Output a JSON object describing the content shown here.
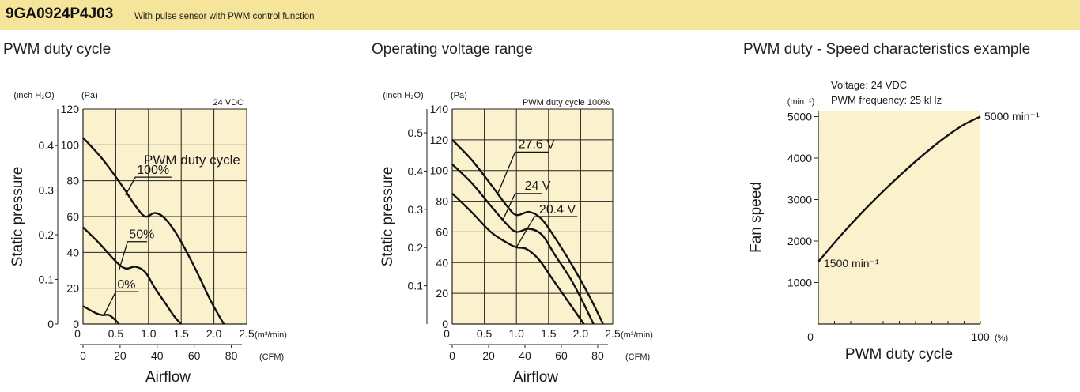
{
  "header": {
    "model": "9GA0924P4J03",
    "subtitle": "With pulse sensor with PWM control function"
  },
  "colors": {
    "header_band": "#f4e59a",
    "plot_bg": "#fbf1cd",
    "curve": "#111111"
  },
  "chart_data": [
    {
      "type": "line",
      "title": "PWM duty cycle",
      "condition_note": "24 VDC",
      "xlabel": "Airflow",
      "ylabel": "Static pressure",
      "x_unit_primary": "(m³/min)",
      "x_unit_secondary": "(CFM)",
      "y_unit_primary": "(Pa)",
      "y_unit_secondary": "(inch H₂O)",
      "xlim": [
        0,
        2.5
      ],
      "ylim": [
        0,
        120
      ],
      "x_ticks": [
        "0",
        "0.5",
        "1.0",
        "1.5",
        "2.0",
        "2.5"
      ],
      "cfm_ticks": [
        "0",
        "20",
        "40",
        "60",
        "80"
      ],
      "y_ticks": [
        "0",
        "20",
        "40",
        "60",
        "80",
        "100",
        "120"
      ],
      "inch_ticks": [
        "0",
        "0.1",
        "0.2",
        "0.3",
        "0.4"
      ],
      "legend_title": "PWM duty cycle",
      "grid": true,
      "series": [
        {
          "name": "100%",
          "x": [
            0,
            0.3,
            0.6,
            0.8,
            0.95,
            1.1,
            1.25,
            1.45,
            1.7,
            1.95,
            2.15
          ],
          "y": [
            104,
            92,
            77,
            66,
            60,
            62,
            59,
            49,
            32,
            13,
            0
          ]
        },
        {
          "name": "50%",
          "x": [
            0,
            0.25,
            0.5,
            0.65,
            0.8,
            0.95,
            1.1,
            1.25,
            1.4,
            1.5
          ],
          "y": [
            54,
            45,
            35,
            31,
            32,
            29,
            20,
            12,
            4,
            0
          ]
        },
        {
          "name": "0%",
          "x": [
            0,
            0.2,
            0.3,
            0.4,
            0.5,
            0.55
          ],
          "y": [
            10,
            6,
            5,
            5,
            2,
            0
          ]
        }
      ]
    },
    {
      "type": "line",
      "title": "Operating voltage range",
      "condition_note": "PWM duty cycle 100%",
      "xlabel": "Airflow",
      "ylabel": "Static pressure",
      "x_unit_primary": "(m³/min)",
      "x_unit_secondary": "(CFM)",
      "y_unit_primary": "(Pa)",
      "y_unit_secondary": "(inch H₂O)",
      "xlim": [
        0,
        2.5
      ],
      "ylim": [
        0,
        140
      ],
      "x_ticks": [
        "0",
        "0.5",
        "1.0",
        "1.5",
        "2.0",
        "2.5"
      ],
      "cfm_ticks": [
        "0",
        "20",
        "40",
        "60",
        "80"
      ],
      "y_ticks": [
        "0",
        "20",
        "40",
        "60",
        "80",
        "100",
        "120",
        "140"
      ],
      "inch_ticks": [
        "0.1",
        "0.2",
        "0.3",
        "0.4",
        "0.5"
      ],
      "grid": true,
      "series": [
        {
          "name": "27.6 V",
          "x": [
            0,
            0.3,
            0.6,
            0.85,
            1.0,
            1.2,
            1.4,
            1.65,
            1.9,
            2.15,
            2.35
          ],
          "y": [
            120,
            107,
            91,
            77,
            71,
            73,
            68,
            53,
            36,
            17,
            0
          ]
        },
        {
          "name": "24 V",
          "x": [
            0,
            0.3,
            0.6,
            0.85,
            1.0,
            1.2,
            1.4,
            1.6,
            1.85,
            2.05,
            2.2
          ],
          "y": [
            104,
            92,
            77,
            65,
            60,
            62,
            58,
            45,
            29,
            13,
            0
          ]
        },
        {
          "name": "20.4 V",
          "x": [
            0,
            0.3,
            0.6,
            0.85,
            1.0,
            1.15,
            1.35,
            1.55,
            1.75,
            1.9,
            2.05
          ],
          "y": [
            85,
            73,
            60,
            53,
            50,
            49,
            42,
            30,
            18,
            9,
            0
          ]
        }
      ]
    },
    {
      "type": "line",
      "title": "PWM duty - Speed characteristics example",
      "condition_lines": [
        "Voltage: 24 VDC",
        "PWM frequency: 25 kHz"
      ],
      "xlabel": "PWM duty cycle",
      "ylabel": "Fan speed",
      "x_unit": "(%)",
      "y_unit": "(min⁻¹)",
      "xlim": [
        0,
        100
      ],
      "ylim": [
        0,
        5000
      ],
      "x_ticks": [
        "0",
        "100"
      ],
      "y_ticks": [
        "1000",
        "2000",
        "3000",
        "4000",
        "5000"
      ],
      "grid": false,
      "series": [
        {
          "name": "",
          "x": [
            0,
            10,
            20,
            30,
            40,
            50,
            60,
            70,
            80,
            90,
            100
          ],
          "y": [
            1500,
            1960,
            2400,
            2810,
            3200,
            3570,
            3920,
            4250,
            4550,
            4810,
            5000
          ]
        }
      ],
      "annotations": {
        "start": "1500 min⁻¹",
        "end": "5000 min⁻¹"
      }
    }
  ]
}
